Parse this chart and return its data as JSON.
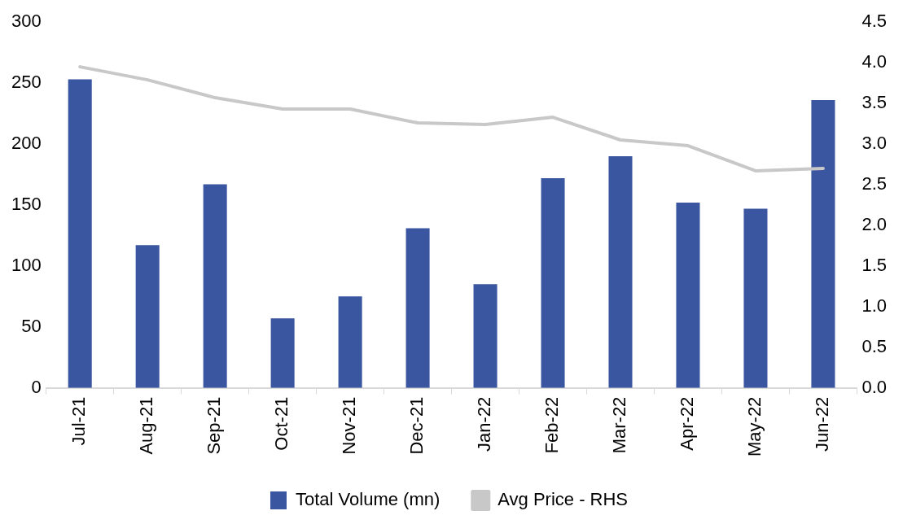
{
  "chart_data": {
    "type": "bar",
    "categories": [
      "Jul-21",
      "Aug-21",
      "Sep-21",
      "Oct-21",
      "Nov-21",
      "Dec-21",
      "Jan-22",
      "Feb-22",
      "Mar-22",
      "Apr-22",
      "May-22",
      "Jun-22"
    ],
    "series": [
      {
        "name": "Total Volume (mn)",
        "color": "#3a56a0",
        "values": [
          253,
          117,
          167,
          57,
          75,
          131,
          85,
          172,
          190,
          152,
          147,
          236
        ]
      },
      {
        "name": "Avg Price - RHS",
        "type": "line",
        "axis": "y2",
        "color": "#c8c8c8",
        "values": [
          3.95,
          3.79,
          3.57,
          3.43,
          3.43,
          3.26,
          3.24,
          3.33,
          3.05,
          2.98,
          2.67,
          2.7
        ]
      }
    ],
    "ylim": [
      0,
      300
    ],
    "yticks": [
      0,
      50,
      100,
      150,
      200,
      250,
      300
    ],
    "y2lim": [
      0,
      4.5
    ],
    "y2ticks": [
      {
        "value": 0,
        "label": "0.0"
      },
      {
        "value": 0.5,
        "label": "0.5"
      },
      {
        "value": 1,
        "label": "1.0"
      },
      {
        "value": 1.5,
        "label": "1.5"
      },
      {
        "value": 2,
        "label": "2.0"
      },
      {
        "value": 2.5,
        "label": "2.5"
      },
      {
        "value": 3,
        "label": "3.0"
      },
      {
        "value": 3.5,
        "label": "3.5"
      },
      {
        "value": 4,
        "label": "4.0"
      },
      {
        "value": 4.5,
        "label": "4.5"
      }
    ],
    "grid": false,
    "legend": "bottom",
    "marker": "none"
  }
}
